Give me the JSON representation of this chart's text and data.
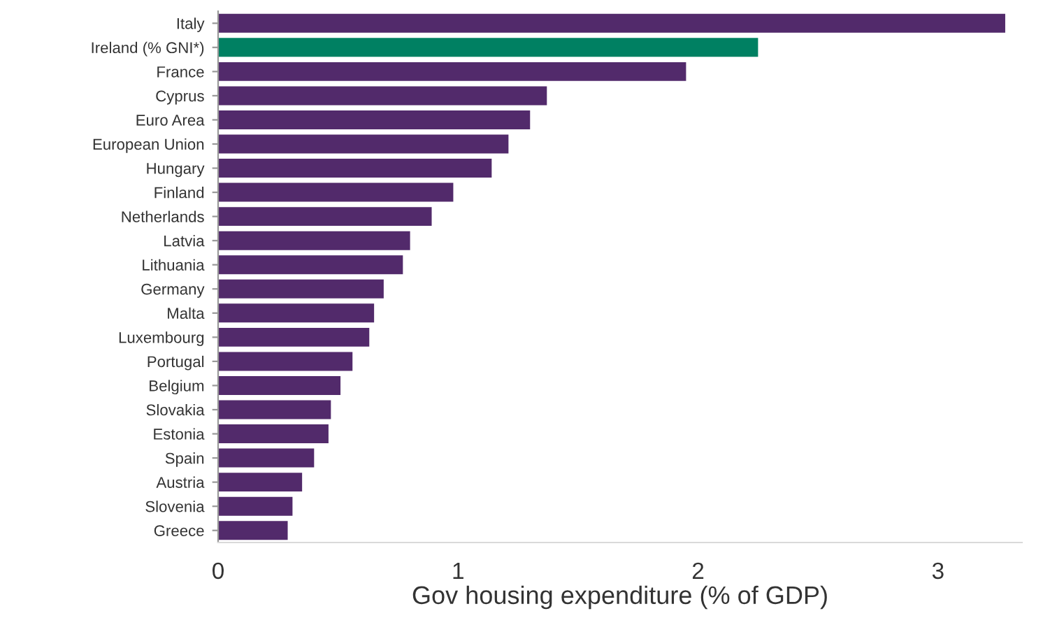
{
  "chart_data": {
    "type": "bar",
    "orientation": "horizontal",
    "xlabel": "Gov housing expenditure (% of GDP)",
    "categories": [
      "Italy",
      "Ireland (% GNI*)",
      "France",
      "Cyprus",
      "Euro Area",
      "European Union",
      "Hungary",
      "Finland",
      "Netherlands",
      "Latvia",
      "Lithuania",
      "Germany",
      "Malta",
      "Luxembourg",
      "Portugal",
      "Belgium",
      "Slovakia",
      "Estonia",
      "Spain",
      "Austria",
      "Slovenia",
      "Greece"
    ],
    "values": [
      3.28,
      2.25,
      1.95,
      1.37,
      1.3,
      1.21,
      1.14,
      0.98,
      0.89,
      0.8,
      0.77,
      0.69,
      0.65,
      0.63,
      0.56,
      0.51,
      0.47,
      0.46,
      0.4,
      0.35,
      0.31,
      0.29
    ],
    "colors": [
      "#522a6b",
      "#008062",
      "#522a6b",
      "#522a6b",
      "#522a6b",
      "#522a6b",
      "#522a6b",
      "#522a6b",
      "#522a6b",
      "#522a6b",
      "#522a6b",
      "#522a6b",
      "#522a6b",
      "#522a6b",
      "#522a6b",
      "#522a6b",
      "#522a6b",
      "#522a6b",
      "#522a6b",
      "#522a6b",
      "#522a6b",
      "#522a6b"
    ],
    "xlim": [
      0,
      3.35
    ],
    "xticks": [
      0,
      1,
      2,
      3
    ],
    "grid": false,
    "legend": false
  }
}
